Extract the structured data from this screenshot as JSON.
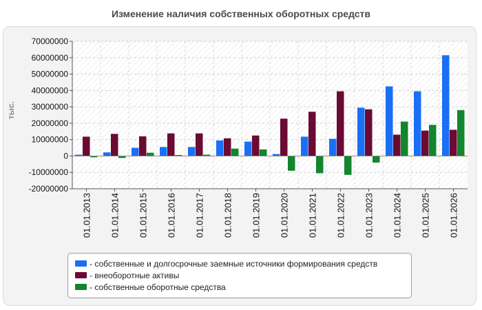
{
  "chart_data": {
    "type": "bar",
    "title": "Изменение наличия собственных оборотных средств",
    "ylabel": "тыс.",
    "ylim": [
      -20000000,
      70000000
    ],
    "ytick_step": 10000000,
    "yticks": [
      "70000000",
      "60000000",
      "50000000",
      "40000000",
      "30000000",
      "20000000",
      "10000000",
      "0",
      "-10000000",
      "-20000000"
    ],
    "grid": true,
    "legend_position": "bottom",
    "categories": [
      "01.01.2013",
      "01.01.2014",
      "01.01.2015",
      "01.01.2016",
      "01.01.2017",
      "01.01.2018",
      "01.01.2019",
      "01.01.2020",
      "01.01.2021",
      "01.01.2022",
      "01.01.2023",
      "01.01.2024",
      "01.01.2025",
      "01.01.2026"
    ],
    "series": [
      {
        "name": "- собственные и долгосрочные заемные источники формирования средств",
        "color": "#1a6ff5",
        "values": [
          800000,
          2200000,
          5000000,
          5500000,
          5500000,
          9500000,
          8800000,
          1200000,
          11800000,
          10500000,
          29500000,
          42500000,
          39500000,
          61500000
        ]
      },
      {
        "name": "- внеоборотные активы",
        "color": "#6b0a33",
        "values": [
          11800000,
          13500000,
          12000000,
          13800000,
          13800000,
          10800000,
          12500000,
          22800000,
          27000000,
          39500000,
          28500000,
          13000000,
          15500000,
          16000000
        ]
      },
      {
        "name": "- собственные оборотные средства",
        "color": "#12852e",
        "values": [
          -800000,
          -1200000,
          2000000,
          600000,
          800000,
          4500000,
          4000000,
          -9000000,
          -10500000,
          -11500000,
          -4000000,
          21000000,
          19000000,
          28000000
        ]
      }
    ]
  }
}
